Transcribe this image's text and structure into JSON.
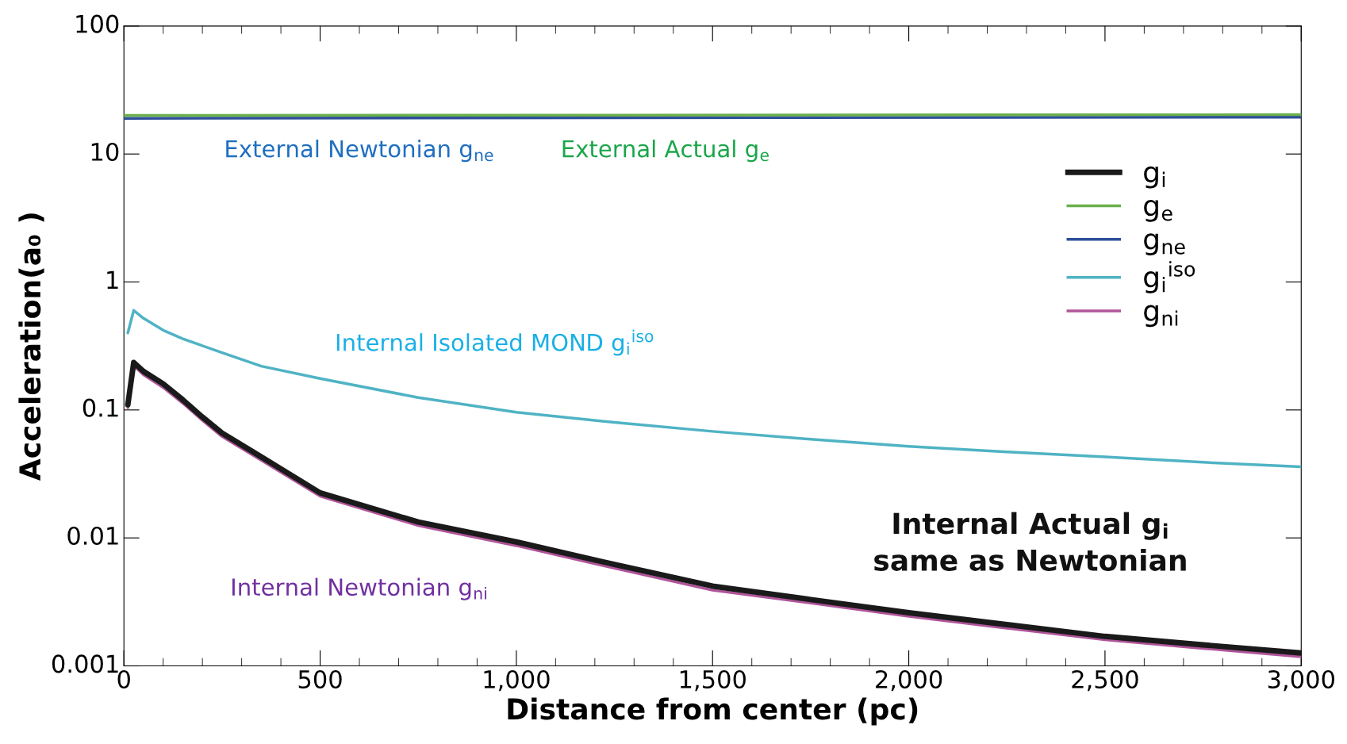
{
  "chart_data": {
    "type": "line",
    "xlabel": "Distance from center (pc)",
    "ylabel": "Acceleration(a₀ )",
    "log": "y",
    "xlim": [
      0,
      3000
    ],
    "xticks": [
      0,
      500,
      {
        "value": 1000,
        "label": "1,000"
      },
      {
        "value": 1500,
        "label": "1,500"
      },
      {
        "value": 2000,
        "label": "2,000"
      },
      {
        "value": 2500,
        "label": "2,500"
      },
      {
        "value": 3000,
        "label": "3,000"
      }
    ],
    "ylim": [
      0.001,
      100
    ],
    "yticks": [
      0.001,
      0.01,
      0.1,
      1,
      10,
      100
    ],
    "legend": "top right",
    "grid": false,
    "marker": "none",
    "line_style": "solid",
    "series": [
      {
        "name": "g$_{i}$",
        "color": "#1a1a1a",
        "x": [
          10,
          25,
          50,
          100,
          150,
          200,
          250,
          350,
          500,
          750,
          1000,
          1250,
          1500,
          1750,
          2000,
          2250,
          2500,
          2750,
          3000
        ],
        "values": [
          0.11,
          0.235,
          0.2,
          0.16,
          0.12,
          0.088,
          0.066,
          0.043,
          0.0225,
          0.0133,
          0.0093,
          0.0062,
          0.0042,
          0.0033,
          0.0026,
          0.0021,
          0.0017,
          0.00146,
          0.00126
        ]
      },
      {
        "name": "g$_{e}$",
        "color": "#6ab04c",
        "x": [
          0,
          3000
        ],
        "values": [
          20,
          20.3
        ]
      },
      {
        "name": "g$_{ne}$",
        "color": "#2e4f9a",
        "x": [
          0,
          3000
        ],
        "values": [
          19,
          19.4
        ]
      },
      {
        "name": "g$_{i}$$^{iso}$",
        "color": "#4fb3c4",
        "x": [
          10,
          25,
          50,
          100,
          150,
          250,
          350,
          500,
          750,
          1000,
          1250,
          1500,
          1750,
          2000,
          2250,
          2500,
          2750,
          3000
        ],
        "values": [
          0.4,
          0.6,
          0.52,
          0.42,
          0.36,
          0.28,
          0.22,
          0.176,
          0.125,
          0.096,
          0.08,
          0.068,
          0.059,
          0.052,
          0.047,
          0.043,
          0.039,
          0.036
        ]
      },
      {
        "name": "g$_{ni}$",
        "color": "#b0559a",
        "x": [
          10,
          25,
          50,
          100,
          150,
          200,
          250,
          350,
          500,
          750,
          1000,
          1250,
          1500,
          1750,
          2000,
          2250,
          2500,
          2750,
          3000
        ],
        "values": [
          0.104,
          0.222,
          0.188,
          0.15,
          0.113,
          0.083,
          0.062,
          0.0405,
          0.0212,
          0.0125,
          0.0087,
          0.0058,
          0.0039,
          0.0031,
          0.00244,
          0.00197,
          0.0016,
          0.00137,
          0.00118
        ]
      }
    ],
    "annotations": [
      "External Newtonian g$_{ne}$",
      "External Actual g$_{e}$",
      "Internal Isolated MOND g$_{i}$$^{iso}$",
      "Internal Newtonian g$_{ni}$",
      "Internal Actual g$_{i}$\nsame as Newtonian"
    ]
  }
}
